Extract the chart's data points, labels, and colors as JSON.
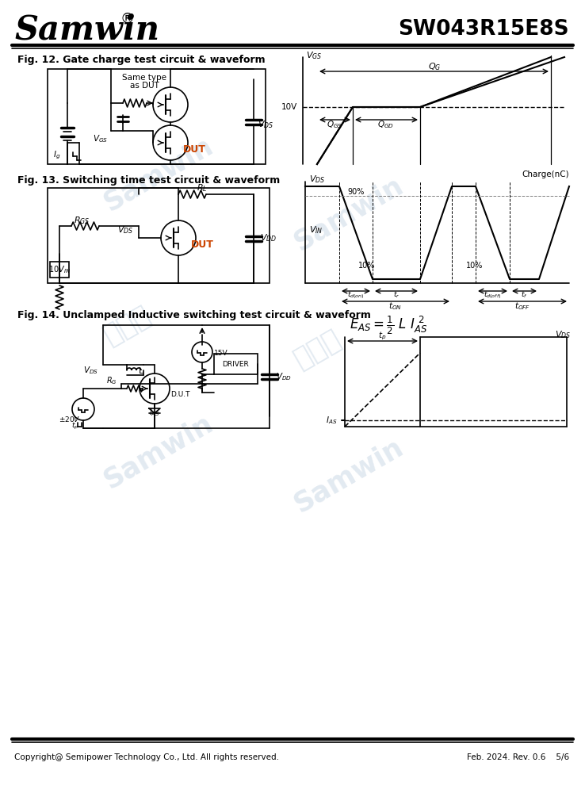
{
  "title_company": "Samwin",
  "title_part": "SW043R15E8S",
  "fig12_title": "Fig. 12. Gate charge test circuit & waveform",
  "fig13_title": "Fig. 13. Switching time test circuit & waveform",
  "fig14_title": "Fig. 14. Unclamped Inductive switching test circuit & waveform",
  "footer_left": "Copyright@ Semipower Technology Co., Ltd. All rights reserved.",
  "footer_right": "Feb. 2024. Rev. 0.6    5/6",
  "bg_color": "#ffffff",
  "line_color": "#000000",
  "watermark_color": "#c0d0e0"
}
